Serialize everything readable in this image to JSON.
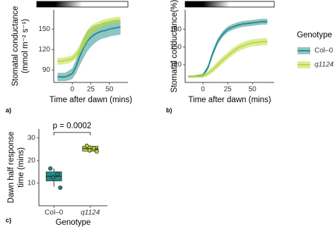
{
  "chart_data": [
    {
      "type": "line",
      "panel_label": "a)",
      "x_label": "Time after dawn (mins)",
      "y_label": [
        "Stomatal conductance",
        "(mmol m⁻² s⁻¹)"
      ],
      "xlim": [
        -25,
        75
      ],
      "xticks": [
        0,
        25,
        50
      ],
      "ylim": [
        72,
        178
      ],
      "yticks": [
        90,
        120,
        150
      ],
      "x": [
        -20,
        -15,
        -10,
        -5,
        0,
        5,
        10,
        15,
        20,
        25,
        30,
        35,
        40,
        45,
        50,
        55,
        60,
        65
      ],
      "series": [
        {
          "color": "#1f8a8a",
          "values": [
            80,
            80,
            80,
            82,
            85,
            95,
            110,
            122,
            132,
            138,
            142,
            145,
            147,
            148,
            150,
            151,
            152,
            153
          ],
          "errors": [
            6,
            6,
            6,
            7,
            8,
            10,
            13,
            15,
            15,
            14,
            13,
            12,
            11,
            11,
            11,
            11,
            11,
            11
          ]
        },
        {
          "color": "#b8d935",
          "values": [
            103,
            103,
            104,
            105,
            107,
            112,
            120,
            130,
            140,
            148,
            152,
            155,
            158,
            160,
            161,
            162,
            163,
            163
          ],
          "errors": [
            5,
            5,
            5,
            5,
            5,
            6,
            7,
            8,
            8,
            7,
            6,
            6,
            5,
            5,
            5,
            5,
            5,
            5
          ]
        }
      ]
    },
    {
      "type": "line",
      "panel_label": "b)",
      "x_label": "Time after dawn (mins)",
      "y_label": "Stomatal conductance(%)",
      "xlim": [
        -18,
        72
      ],
      "xticks": [
        0,
        25,
        50
      ],
      "ylim": [
        90,
        213
      ],
      "yticks": [
        120,
        150,
        180
      ],
      "legend_title": "Genotype",
      "x": [
        -15,
        -10,
        -5,
        0,
        5,
        10,
        15,
        20,
        25,
        30,
        35,
        40,
        45,
        50,
        55,
        60,
        65
      ],
      "series": [
        {
          "name": "Col–0",
          "color": "#1f8a8a",
          "values": [
            100,
            100,
            101,
            102,
            115,
            140,
            160,
            172,
            180,
            184,
            187,
            189,
            190,
            191,
            192,
            193,
            193
          ],
          "errors": [
            2,
            2,
            2,
            3,
            4,
            5,
            5,
            5,
            5,
            5,
            5,
            5,
            5,
            5,
            5,
            5,
            5
          ]
        },
        {
          "name": "q1124",
          "color": "#b8d935",
          "values": [
            100,
            100,
            100,
            101,
            105,
            112,
            120,
            128,
            135,
            142,
            148,
            152,
            155,
            157,
            158,
            159,
            159
          ],
          "errors": [
            2,
            2,
            2,
            3,
            4,
            5,
            6,
            6,
            6,
            6,
            6,
            6,
            6,
            6,
            6,
            6,
            6
          ]
        }
      ]
    },
    {
      "type": "box",
      "panel_label": "c)",
      "x_label": "Genotype",
      "y_label": [
        "Dawn half response",
        "time (mins)"
      ],
      "annotation": "p = 0.0002",
      "ylim": [
        0,
        34
      ],
      "yticks": [
        10,
        20,
        30
      ],
      "categories": [
        "Col–0",
        "q1124"
      ],
      "colors": [
        "#1f8a8a",
        "#b8d935"
      ],
      "boxes": [
        {
          "whisker_low": 8.5,
          "q1": 11,
          "median": 13,
          "q3": 15,
          "whisker_high": 16.5
        },
        {
          "whisker_low": 23.8,
          "q1": 24.2,
          "median": 25.3,
          "q3": 26.3,
          "whisker_high": 26.8
        }
      ],
      "points": [
        [
          16.5,
          14,
          12.5,
          8
        ],
        [
          26.5,
          25.5,
          24.5,
          24
        ]
      ]
    }
  ]
}
